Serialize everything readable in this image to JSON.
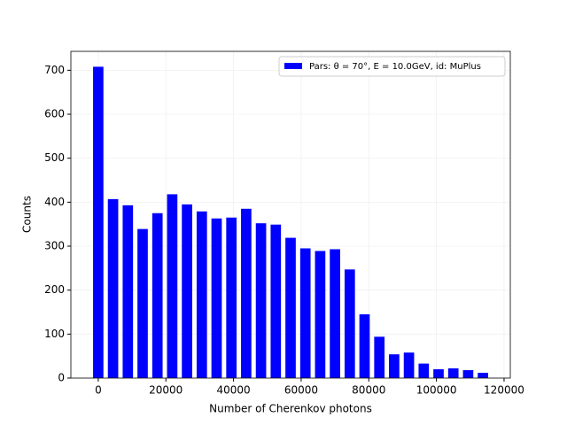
{
  "chart_data": {
    "type": "histogram",
    "xlabel": "Number of Cherenkov photons",
    "ylabel": "Counts",
    "bins": [
      -2187.5,
      2187.5,
      6562.5,
      10937.5,
      15312.5,
      19687.5,
      24062.5,
      28437.5,
      32812.5,
      37187.5,
      41562.5,
      45937.5,
      50312.5,
      54687.5,
      59062.5,
      63437.5,
      67812.5,
      72187.5,
      76562.5,
      80937.5,
      85312.5,
      89687.5,
      94062.5,
      98437.5,
      102812.5,
      107187.5,
      111562.5,
      115937.5
    ],
    "series": [
      {
        "name": "Pars: θ = 70°, E = 10.0GeV, id: MuPlus",
        "color": "#0000ff",
        "values": [
          708,
          407,
          393,
          339,
          375,
          418,
          395,
          379,
          363,
          365,
          385,
          352,
          349,
          319,
          295,
          289,
          293,
          247,
          145,
          94,
          54,
          58,
          33,
          20,
          22,
          18,
          12
        ]
      }
    ],
    "xlim": [
      -8094,
      121844
    ],
    "ylim": [
      0,
      743
    ],
    "xticks": [
      0,
      20000,
      40000,
      60000,
      80000,
      100000,
      120000
    ],
    "yticks": [
      0,
      100,
      200,
      300,
      400,
      500,
      600,
      700
    ],
    "grid": true,
    "legend": "upper right"
  }
}
